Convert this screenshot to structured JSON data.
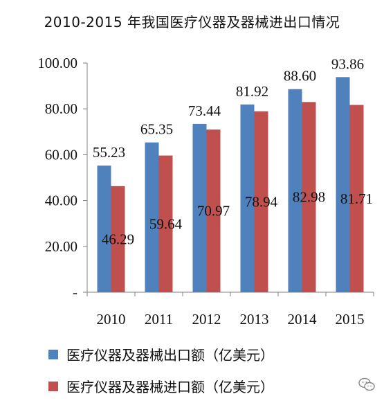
{
  "chart_data": {
    "type": "bar",
    "title": "2010-2015 年我国医疗仪器及器械进出口情况",
    "categories": [
      "2010",
      "2011",
      "2012",
      "2013",
      "2014",
      "2015"
    ],
    "series": [
      {
        "name": "医疗仪器及器械出口额（亿美元）",
        "values": [
          55.23,
          65.35,
          73.44,
          81.92,
          88.6,
          93.86
        ],
        "color": "#4f81bd"
      },
      {
        "name": "医疗仪器及器械进口额（亿美元）",
        "values": [
          46.29,
          59.64,
          70.97,
          78.94,
          82.98,
          81.71
        ],
        "color": "#c0504d"
      }
    ],
    "yticks": [
      "-",
      "20.00",
      "40.00",
      "60.00",
      "80.00",
      "100.00"
    ],
    "ylim": [
      0,
      100
    ],
    "grid": false,
    "legend_position": "bottom"
  }
}
